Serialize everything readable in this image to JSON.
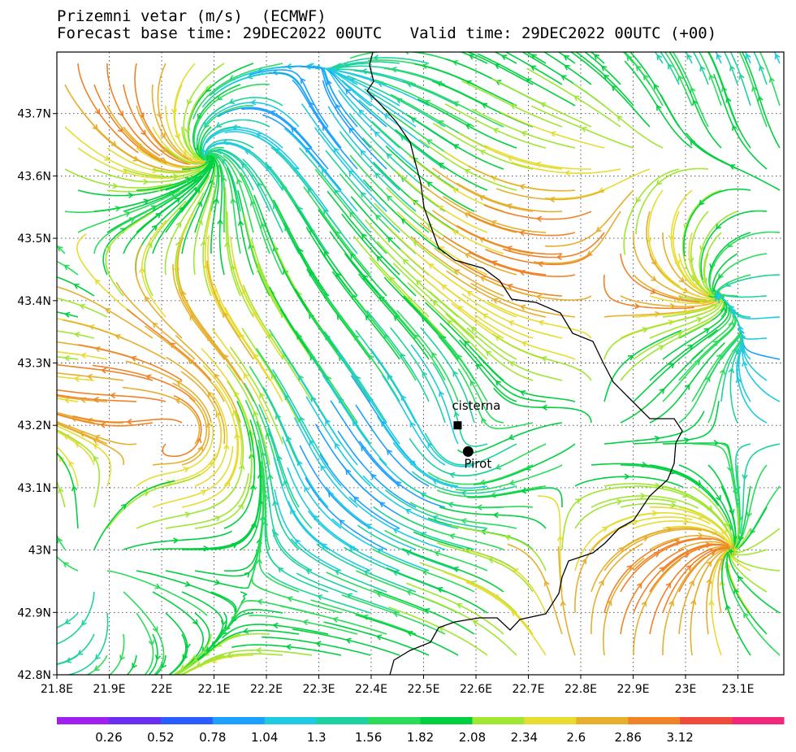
{
  "title_line1": "Prizemni vetar (m/s)  (ECMWF)",
  "title_line2": "Forecast base time: 29DEC2022 00UTC   Valid time: 29DEC2022 00UTC (+00)",
  "lon_ticks": [
    "21.8E",
    "21.9E",
    "22E",
    "22.1E",
    "22.2E",
    "22.3E",
    "22.4E",
    "22.5E",
    "22.6E",
    "22.7E",
    "22.8E",
    "22.9E",
    "23E",
    "23.1E"
  ],
  "lat_ticks": [
    "42.8N",
    "42.9N",
    "43N",
    "43.1N",
    "43.2N",
    "43.3N",
    "43.4N",
    "43.5N",
    "43.6N",
    "43.7N"
  ],
  "places": {
    "cisterna": {
      "label": "cisterna",
      "lon": 22.565,
      "lat": 43.2,
      "marker": "square"
    },
    "pirot": {
      "label": "Pirot",
      "lon": 22.585,
      "lat": 43.158,
      "marker": "circle"
    }
  },
  "colorbar": {
    "labels": [
      "0.26",
      "0.52",
      "0.78",
      "1.04",
      "1.3",
      "1.56",
      "1.82",
      "2.08",
      "2.34",
      "2.6",
      "2.86",
      "3.12"
    ],
    "colors": [
      "#a020f0",
      "#6a2ef0",
      "#2a5cff",
      "#1ea0ff",
      "#1ecbe1",
      "#1ed2a0",
      "#2adc5a",
      "#00d040",
      "#a0e632",
      "#e6dc32",
      "#e6af2d",
      "#f08228",
      "#f04a3c",
      "#f0287a"
    ]
  }
}
